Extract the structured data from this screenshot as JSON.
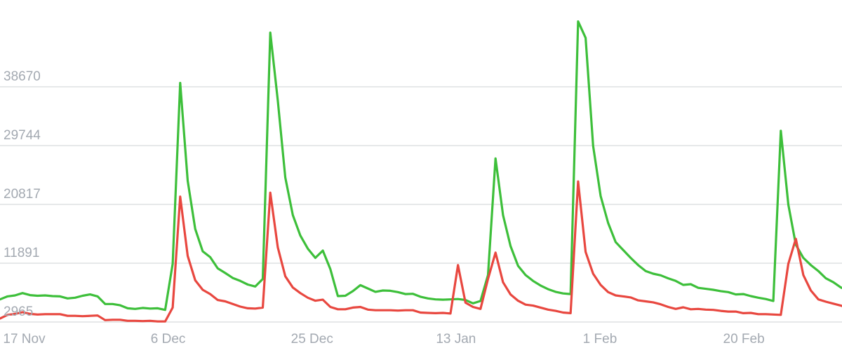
{
  "chart_data": {
    "type": "line",
    "y_ticks": [
      "38670",
      "29744",
      "20817",
      "11891",
      "2965"
    ],
    "x_ticks": [
      "17 Nov",
      "6 Dec",
      "25 Dec",
      "13 Jan",
      "1 Feb",
      "20 Feb"
    ],
    "x_tick_day_index": [
      0,
      19,
      38,
      57,
      76,
      95
    ],
    "x_start_offset_days": 1,
    "grid": true,
    "ylim": [
      2965,
      38670
    ],
    "series": [
      {
        "color": "#3dbf3a",
        "values": [
          6400,
          6850,
          7000,
          7350,
          7050,
          6950,
          7000,
          6900,
          6850,
          6550,
          6650,
          6950,
          7150,
          6850,
          5700,
          5700,
          5500,
          5050,
          4950,
          5100,
          5000,
          5050,
          4800,
          11800,
          39250,
          24400,
          17100,
          13700,
          12800,
          11100,
          10400,
          9650,
          9200,
          8650,
          8350,
          9500,
          46900,
          36600,
          24900,
          19200,
          16100,
          14100,
          12700,
          13800,
          11000,
          6900,
          6950,
          7650,
          8550,
          8050,
          7550,
          7750,
          7700,
          7500,
          7200,
          7250,
          6800,
          6550,
          6400,
          6350,
          6400,
          6450,
          6300,
          5800,
          6150,
          10100,
          27800,
          19200,
          14500,
          11500,
          10100,
          9200,
          8500,
          7950,
          7550,
          7300,
          7200,
          48600,
          46100,
          29700,
          22100,
          18000,
          15100,
          13900,
          12700,
          11600,
          10700,
          10300,
          10050,
          9600,
          9200,
          8600,
          8700,
          8150,
          8000,
          7850,
          7650,
          7500,
          7150,
          7200,
          6900,
          6650,
          6450,
          6150,
          32000,
          20800,
          14700,
          12700,
          11600,
          10700,
          9600,
          9000,
          8200,
          7700
        ]
      },
      {
        "color": "#e8473f",
        "values": [
          3500,
          4050,
          4200,
          4450,
          4200,
          4100,
          4150,
          4150,
          4150,
          3900,
          3900,
          3850,
          3900,
          3950,
          3250,
          3300,
          3300,
          3150,
          3150,
          3100,
          3150,
          3050,
          3050,
          5150,
          22000,
          13000,
          9300,
          7850,
          7200,
          6300,
          6100,
          5700,
          5300,
          5050,
          5000,
          5150,
          22600,
          14300,
          9900,
          8200,
          7350,
          6650,
          6200,
          6350,
          5250,
          4900,
          4900,
          5150,
          5250,
          4850,
          4750,
          4750,
          4750,
          4700,
          4750,
          4750,
          4400,
          4350,
          4300,
          4350,
          4250,
          11600,
          5900,
          5250,
          4950,
          9500,
          13500,
          9000,
          7150,
          6200,
          5600,
          5450,
          5150,
          4850,
          4650,
          4400,
          4300,
          24300,
          13600,
          10300,
          8600,
          7500,
          7000,
          6850,
          6700,
          6250,
          6100,
          5950,
          5650,
          5250,
          4950,
          5200,
          4900,
          4950,
          4850,
          4800,
          4650,
          4550,
          4550,
          4300,
          4350,
          4150,
          4150,
          4100,
          4050,
          11800,
          15600,
          10100,
          7750,
          6400,
          6050,
          5750,
          5450,
          5100,
          4800
        ]
      }
    ]
  }
}
